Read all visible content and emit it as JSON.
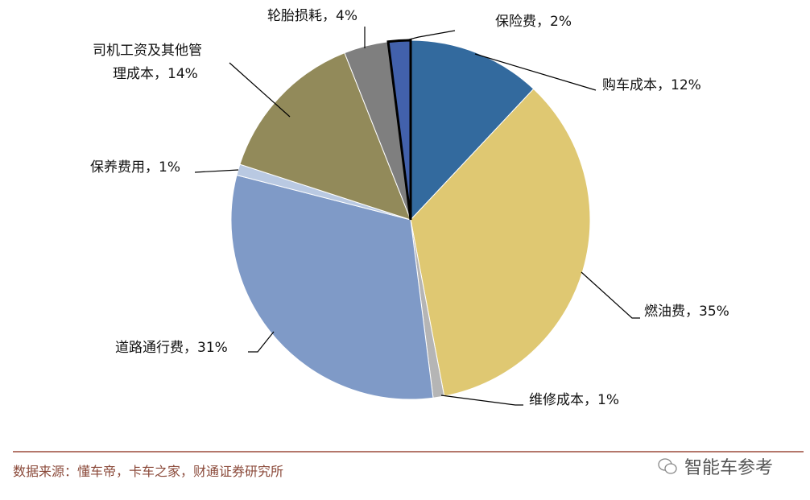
{
  "chart_data": {
    "type": "pie",
    "start": "top",
    "direction": "clockwise",
    "slices": [
      {
        "label": "购车成本，12%",
        "value": 12,
        "color": "#336a9e"
      },
      {
        "label": "燃油费，35%",
        "value": 35,
        "color": "#dfc872"
      },
      {
        "label": "维修成本，1%",
        "value": 1,
        "color": "#b5b5b5"
      },
      {
        "label": "道路通行费，31%",
        "value": 31,
        "color": "#7f9ac7"
      },
      {
        "label": "保养费用，1%",
        "value": 1,
        "color": "#b9c9e2"
      },
      {
        "label": "司机工资及其他管理成本，14%",
        "label_lines": [
          "司机工资及其他管",
          "理成本，14%"
        ],
        "value": 14,
        "color": "#928a5a"
      },
      {
        "label": "轮胎损耗，4%",
        "value": 4,
        "color": "#7f7f7f"
      },
      {
        "label": "保险费，2%",
        "value": 2,
        "color": "#4261ac",
        "highlighted": true
      }
    ]
  },
  "footer": {
    "source": "数据来源：懂车帝，卡车之家，财通证券研究所",
    "watermark": "智能车参考",
    "rule_color": "#9b4a3a"
  }
}
